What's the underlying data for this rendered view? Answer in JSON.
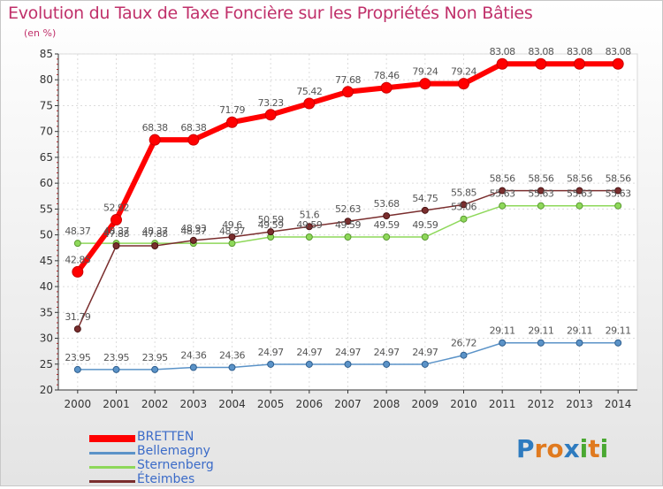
{
  "title": "Evolution du Taux de Taxe Foncière sur les Propriétés Non Bâties",
  "unit_label": "(en %)",
  "logo": {
    "letters": [
      "P",
      "r",
      "o",
      "x",
      "i",
      "t",
      "i"
    ],
    "colors": [
      "#2e7bbf",
      "#e07a1f",
      "#e07a1f",
      "#2e7bbf",
      "#4aa832",
      "#e07a1f",
      "#4aa832"
    ]
  },
  "chart_data": {
    "type": "line",
    "title": "Evolution du Taux de Taxe Foncière sur les Propriétés Non Bâties",
    "ylabel": "(en %)",
    "xlabel": "",
    "categories": [
      "2000",
      "2001",
      "2002",
      "2003",
      "2004",
      "2005",
      "2006",
      "2007",
      "2008",
      "2009",
      "2010",
      "2011",
      "2012",
      "2013",
      "2014"
    ],
    "ylim": [
      20,
      85
    ],
    "yticks": [
      "20",
      "25",
      "30",
      "35",
      "40",
      "45",
      "50",
      "55",
      "60",
      "65",
      "70",
      "75",
      "80",
      "85"
    ],
    "grid": true,
    "legend_position": "bottom-left",
    "series": [
      {
        "name": "BRETTEN",
        "color": "#ff0000",
        "values": [
          42.85,
          52.92,
          68.38,
          68.38,
          71.79,
          73.23,
          75.42,
          77.68,
          78.46,
          79.24,
          79.24,
          83.08,
          83.08,
          83.08,
          83.08
        ],
        "labels": [
          "42.85",
          "52.92",
          "68.38",
          "68.38",
          "71.79",
          "73.23",
          "75.42",
          "77.68",
          "78.46",
          "79.24",
          "79.24",
          "83.08",
          "83.08",
          "83.08",
          "83.08"
        ]
      },
      {
        "name": "Bellemagny",
        "color": "#5b93c8",
        "values": [
          23.95,
          23.95,
          23.95,
          24.36,
          24.36,
          24.97,
          24.97,
          24.97,
          24.97,
          24.97,
          26.72,
          29.11,
          29.11,
          29.11,
          29.11
        ],
        "labels": [
          "23.95",
          "23.95",
          "23.95",
          "24.36",
          "24.36",
          "24.97",
          "24.97",
          "24.97",
          "24.97",
          "24.97",
          "26.72",
          "29.11",
          "29.11",
          "29.11",
          "29.11"
        ]
      },
      {
        "name": "Sternenberg",
        "color": "#8ed85a",
        "values": [
          48.37,
          48.37,
          48.37,
          48.37,
          48.37,
          49.59,
          49.59,
          49.59,
          49.59,
          49.59,
          53.06,
          55.63,
          55.63,
          55.63,
          55.63
        ],
        "labels": [
          "48.37",
          "48.37",
          "48.37",
          "48.37",
          "48.37",
          "49.59",
          "49.59",
          "49.59",
          "49.59",
          "49.59",
          "53.06",
          "55.63",
          "55.63",
          "55.63",
          "55.63"
        ]
      },
      {
        "name": "Éteimbes",
        "color": "#7a2e2e",
        "values": [
          31.79,
          47.88,
          47.88,
          48.93,
          49.6,
          50.59,
          51.6,
          52.63,
          53.68,
          54.75,
          55.85,
          58.56,
          58.56,
          58.56,
          58.56
        ],
        "labels": [
          "31.79",
          "47.88",
          "47.88",
          "48.93",
          "49.6",
          "50.59",
          "51.6",
          "52.63",
          "53.68",
          "54.75",
          "55.85",
          "58.56",
          "58.56",
          "58.56",
          "58.56"
        ]
      }
    ]
  }
}
